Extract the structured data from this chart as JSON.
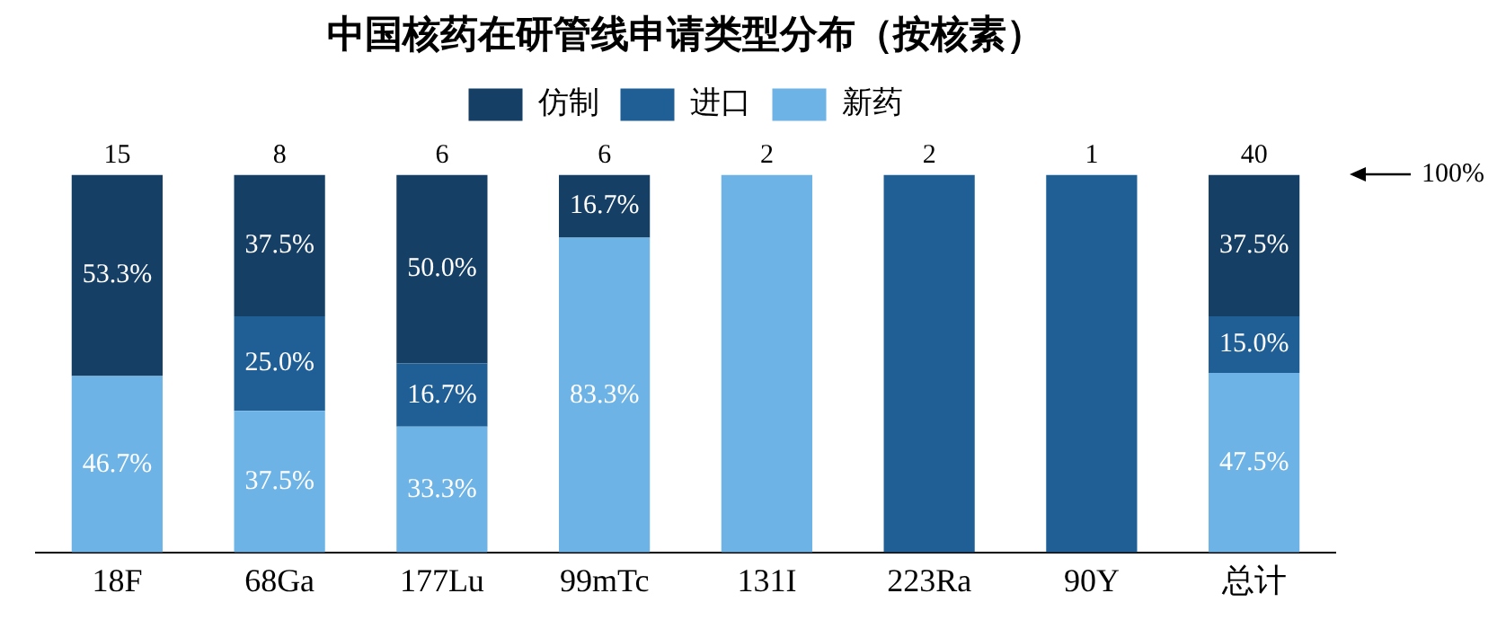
{
  "chart_data": {
    "type": "bar",
    "title": "中国核药在研管线申请类型分布（按核素）",
    "categories": [
      "18F",
      "68Ga",
      "177Lu",
      "99mTc",
      "131I",
      "223Ra",
      "90Y",
      "总计"
    ],
    "stacked": true,
    "legend": "top",
    "tick_labels": "x",
    "ylim": [
      0,
      100
    ],
    "series": [
      {
        "name": "新药",
        "color": "#6db3e6",
        "values": [
          46.7,
          37.5,
          33.3,
          83.3,
          100,
          0,
          0,
          47.5
        ],
        "value_labels": [
          "46.7%",
          "37.5%",
          "33.3%",
          "83.3%",
          null,
          null,
          null,
          "47.5%"
        ]
      },
      {
        "name": "进口",
        "color": "#1f5f96",
        "values": [
          0,
          25.0,
          16.7,
          0,
          0,
          100,
          100,
          15.0
        ],
        "value_labels": [
          null,
          "25.0%",
          "16.7%",
          null,
          null,
          null,
          null,
          "15.0%"
        ]
      },
      {
        "name": "仿制",
        "color": "#163f66",
        "values": [
          53.3,
          37.5,
          50.0,
          16.7,
          0,
          0,
          0,
          37.5
        ],
        "value_labels": [
          "53.3%",
          "37.5%",
          "50.0%",
          "16.7%",
          null,
          null,
          null,
          "37.5%"
        ]
      }
    ],
    "annotations": [
      {
        "text": "15",
        "x": "18F",
        "y": 100
      },
      {
        "text": "8",
        "x": "68Ga",
        "y": 100
      },
      {
        "text": "6",
        "x": "177Lu",
        "y": 100
      },
      {
        "text": "6",
        "x": "99mTc",
        "y": 100
      },
      {
        "text": "2",
        "x": "131I",
        "y": 100
      },
      {
        "text": "2",
        "x": "223Ra",
        "y": 100
      },
      {
        "text": "1",
        "x": "90Y",
        "y": 100
      },
      {
        "text": "40",
        "x": "总计",
        "y": 100
      },
      "100%"
    ]
  }
}
